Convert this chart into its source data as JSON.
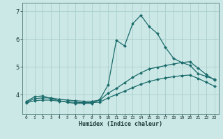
{
  "title": "",
  "xlabel": "Humidex (Indice chaleur)",
  "ylabel": "",
  "xlim": [
    -0.5,
    23.5
  ],
  "ylim": [
    3.3,
    7.3
  ],
  "bg_color": "#cce8e6",
  "grid_color": "#aacfcd",
  "line_color": "#1a6b6b",
  "yticks": [
    4,
    5,
    6,
    7
  ],
  "xticks": [
    0,
    1,
    2,
    3,
    4,
    5,
    6,
    7,
    8,
    9,
    10,
    11,
    12,
    13,
    14,
    15,
    16,
    17,
    18,
    19,
    20,
    21,
    22,
    23
  ],
  "lines": [
    {
      "x": [
        0,
        1,
        2,
        3,
        4,
        5,
        6,
        7,
        8,
        9,
        10,
        11,
        12,
        13,
        14,
        15,
        16,
        17,
        18,
        19,
        20,
        21,
        22,
        23
      ],
      "y": [
        3.75,
        3.92,
        3.95,
        3.85,
        3.78,
        3.72,
        3.68,
        3.68,
        3.68,
        3.83,
        4.35,
        5.95,
        5.75,
        6.55,
        6.85,
        6.45,
        6.2,
        5.7,
        5.3,
        5.15,
        5.05,
        4.75,
        4.65,
        4.55
      ],
      "marker": "D",
      "markersize": 2.0,
      "linewidth": 0.9
    },
    {
      "x": [
        0,
        1,
        2,
        3,
        4,
        5,
        6,
        7,
        8,
        9,
        10,
        11,
        12,
        13,
        14,
        15,
        16,
        17,
        18,
        19,
        20,
        21,
        22,
        23
      ],
      "y": [
        3.73,
        3.85,
        3.88,
        3.88,
        3.83,
        3.8,
        3.78,
        3.76,
        3.76,
        3.8,
        4.05,
        4.22,
        4.42,
        4.62,
        4.78,
        4.92,
        4.98,
        5.04,
        5.1,
        5.15,
        5.18,
        4.95,
        4.72,
        4.52
      ],
      "marker": "D",
      "markersize": 2.0,
      "linewidth": 0.9
    },
    {
      "x": [
        0,
        1,
        2,
        3,
        4,
        5,
        6,
        7,
        8,
        9,
        10,
        11,
        12,
        13,
        14,
        15,
        16,
        17,
        18,
        19,
        20,
        21,
        22,
        23
      ],
      "y": [
        3.7,
        3.78,
        3.8,
        3.8,
        3.76,
        3.74,
        3.72,
        3.71,
        3.71,
        3.73,
        3.88,
        4.0,
        4.12,
        4.25,
        4.37,
        4.47,
        4.54,
        4.6,
        4.64,
        4.68,
        4.7,
        4.58,
        4.44,
        4.3
      ],
      "marker": "D",
      "markersize": 2.0,
      "linewidth": 0.9
    }
  ],
  "xlabel_fontsize": 6.0,
  "xlabel_fontweight": "bold",
  "ytick_fontsize": 6.0,
  "xtick_fontsize": 4.5
}
